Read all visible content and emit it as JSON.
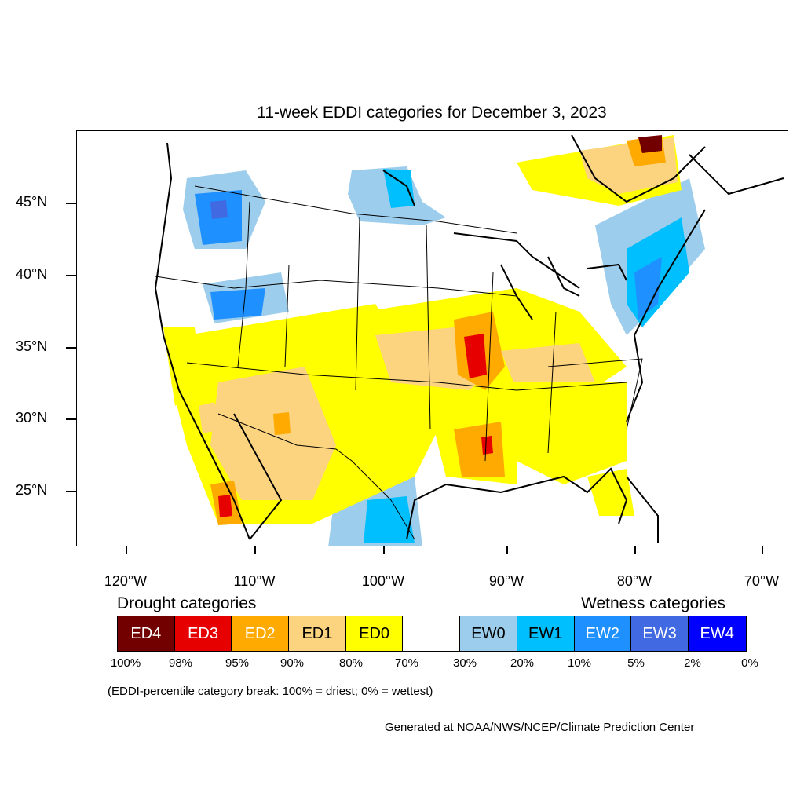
{
  "title": "11-week EDDI categories for December 3, 2023",
  "lat_labels": [
    "45°N",
    "40°N",
    "35°N",
    "30°N",
    "25°N"
  ],
  "lon_labels": [
    "120°W",
    "110°W",
    "100°W",
    "90°W",
    "80°W",
    "70°W"
  ],
  "legend": {
    "drought_title": "Drought categories",
    "wetness_title": "Wetness categories",
    "categories": [
      {
        "label": "ED4",
        "color": "#730000",
        "text_color": "#ffffff"
      },
      {
        "label": "ED3",
        "color": "#e60000",
        "text_color": "#ffffff"
      },
      {
        "label": "ED2",
        "color": "#ffaa00",
        "text_color": "#ffffff"
      },
      {
        "label": "ED1",
        "color": "#fcd37f",
        "text_color": "#000000"
      },
      {
        "label": "ED0",
        "color": "#ffff00",
        "text_color": "#000000"
      },
      {
        "label": "",
        "color": "#ffffff",
        "text_color": "#000000"
      },
      {
        "label": "EW0",
        "color": "#9dcdec",
        "text_color": "#000000"
      },
      {
        "label": "EW1",
        "color": "#00bfff",
        "text_color": "#000000"
      },
      {
        "label": "EW2",
        "color": "#1e90ff",
        "text_color": "#ffffff"
      },
      {
        "label": "EW3",
        "color": "#4169e1",
        "text_color": "#ffffff"
      },
      {
        "label": "EW4",
        "color": "#0000ff",
        "text_color": "#ffffff"
      }
    ],
    "percent_breaks": [
      "100%",
      "98%",
      "95%",
      "90%",
      "80%",
      "70%",
      "30%",
      "20%",
      "10%",
      "5%",
      "2%",
      "0%"
    ],
    "note": "(EDDI-percentile category break: 100% = driest; 0% = wettest)"
  },
  "credit": "Generated at NOAA/NWS/NCEP/Climate Prediction Center"
}
